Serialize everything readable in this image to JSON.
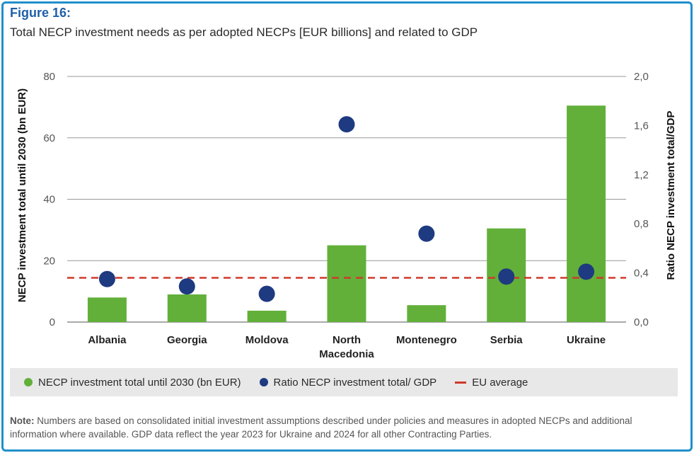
{
  "figure_label": "Figure 16:",
  "figure_title": "Total NECP investment needs as per adopted NECPs [EUR billions] and related to GDP",
  "colors": {
    "bar": "#62b03a",
    "dot": "#1e3a80",
    "eu_line": "#d0392b",
    "frame": "#1f8fcb",
    "label": "#1f5fa8"
  },
  "legend": {
    "bar_label": "NECP investment total until 2030 (bn EUR)",
    "dot_label": "Ratio NECP investment total/ GDP",
    "line_label": "EU average"
  },
  "note": {
    "label": "Note:",
    "text": " Numbers are based on consolidated initial investment assumptions described under policies and measures in adopted NECPs and additional information where available. GDP data reflect the year 2023 for Ukraine and 2024 for all other Contracting Parties."
  },
  "chart_data": {
    "type": "bar",
    "categories": [
      "Albania",
      "Georgia",
      "Moldova",
      "North Macedonia",
      "Montenegro",
      "Serbia",
      "Ukraine"
    ],
    "category_lines": [
      [
        "Albania"
      ],
      [
        "Georgia"
      ],
      [
        "Moldova"
      ],
      [
        "North",
        "Macedonia"
      ],
      [
        "Montenegro"
      ],
      [
        "Serbia"
      ],
      [
        "Ukraine"
      ]
    ],
    "ylabel": "NECP investment total until 2030 (bn EUR)",
    "y2label": "Ratio NECP investment total/GDP",
    "ylim": [
      0,
      80
    ],
    "y2lim": [
      0,
      2.0
    ],
    "yticks": [
      0,
      20,
      40,
      60,
      80
    ],
    "y2ticks": [
      "0,0",
      "0,4",
      "0,8",
      "1,2",
      "1,6",
      "2,0"
    ],
    "y2tick_values": [
      0,
      0.4,
      0.8,
      1.2,
      1.6,
      2.0
    ],
    "grid": "horizontal",
    "legend_position": "bottom",
    "series": [
      {
        "name": "NECP investment total until 2030 (bn EUR)",
        "type": "bar",
        "axis": "left",
        "values": [
          8,
          9,
          3.7,
          25,
          5.5,
          30.5,
          70.5
        ]
      },
      {
        "name": "Ratio NECP investment total/ GDP",
        "type": "scatter",
        "axis": "right",
        "values": [
          0.35,
          0.29,
          0.23,
          1.61,
          0.72,
          0.37,
          0.41
        ]
      }
    ],
    "eu_average": {
      "name": "EU average",
      "axis": "right",
      "value": 0.36
    }
  }
}
